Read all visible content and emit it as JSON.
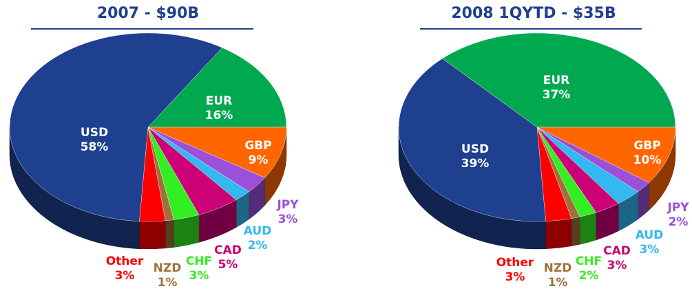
{
  "chart_data": [
    {
      "type": "pie",
      "title": "2007 - $90B",
      "categories": [
        "EUR",
        "GBP",
        "JPY",
        "AUD",
        "CAD",
        "CHF",
        "NZD",
        "Other",
        "USD"
      ],
      "values": [
        16,
        9,
        3,
        2,
        5,
        3,
        1,
        3,
        58
      ],
      "value_labels": [
        "16%",
        "9%",
        "3%",
        "2%",
        "5%",
        "3%",
        "1%",
        "3%",
        "58%"
      ],
      "colors": [
        "#00a850",
        "#ff6600",
        "#9a50d8",
        "#33b8f0",
        "#cc0077",
        "#33ee22",
        "#a0703c",
        "#ff0000",
        "#1f3f8f"
      ]
    },
    {
      "type": "pie",
      "title": "2008 1QYTD - $35B",
      "categories": [
        "EUR",
        "GBP",
        "JPY",
        "AUD",
        "CAD",
        "CHF",
        "NZD",
        "Other",
        "USD"
      ],
      "values": [
        37,
        10,
        2,
        3,
        3,
        2,
        1,
        3,
        39
      ],
      "value_labels": [
        "37%",
        "10%",
        "2%",
        "3%",
        "3%",
        "2%",
        "1%",
        "3%",
        "39%"
      ],
      "colors": [
        "#00a850",
        "#ff6600",
        "#9a50d8",
        "#33b8f0",
        "#cc0077",
        "#33ee22",
        "#a0703c",
        "#ff0000",
        "#1f3f8f"
      ]
    }
  ]
}
